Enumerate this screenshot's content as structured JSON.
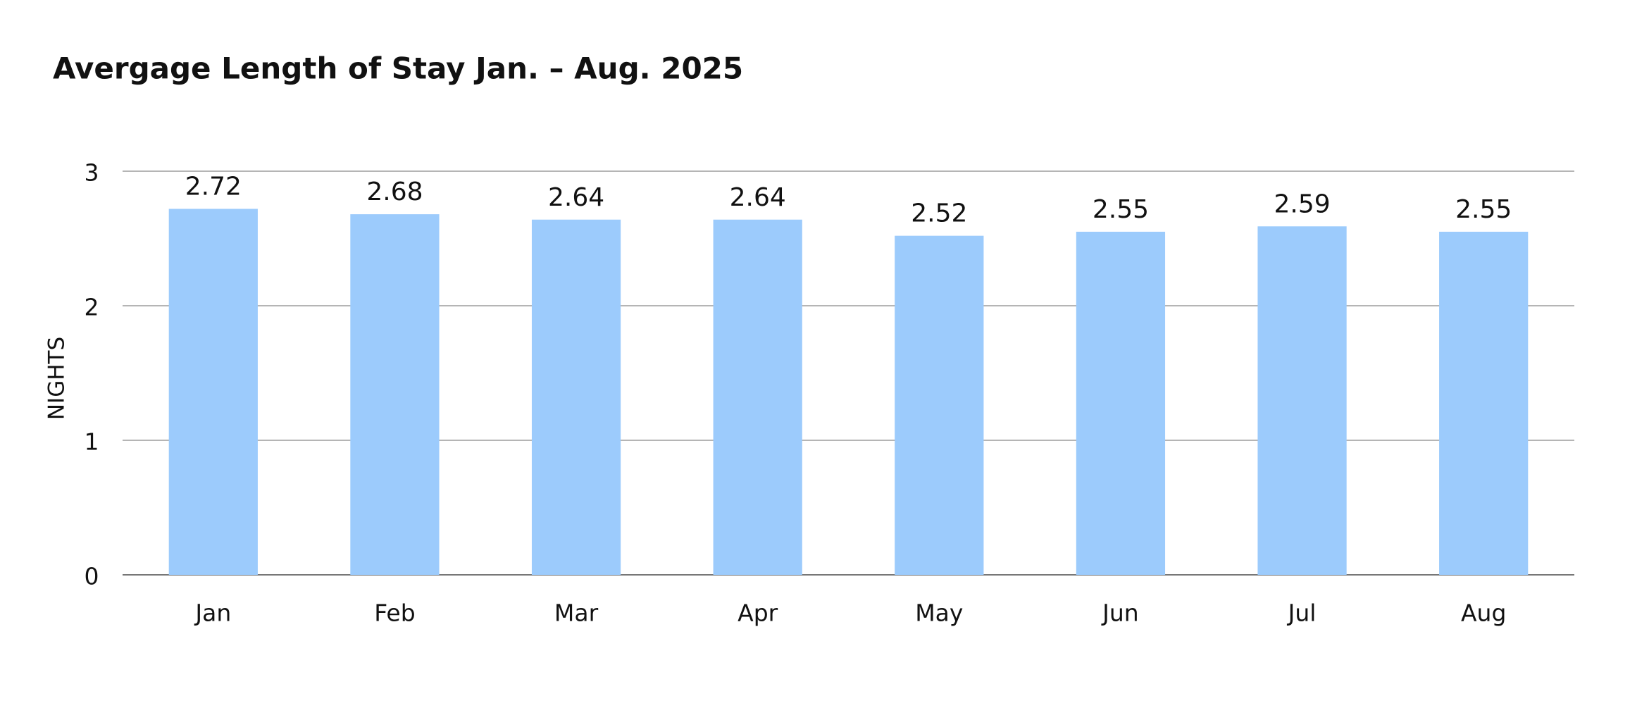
{
  "chart_data": {
    "type": "bar",
    "title": "Avergage Length of Stay Jan. – Aug. 2025",
    "y_label": "NIGHTS",
    "categories": [
      "Jan",
      "Feb",
      "Mar",
      "Apr",
      "May",
      "Jun",
      "Jul",
      "Aug"
    ],
    "values": [
      2.72,
      2.68,
      2.64,
      2.64,
      2.52,
      2.55,
      2.59,
      2.55
    ],
    "color": "#9ccbfc",
    "ylim": [
      0,
      3
    ],
    "yticks": [
      0,
      1,
      2,
      3
    ],
    "grid": true
  }
}
